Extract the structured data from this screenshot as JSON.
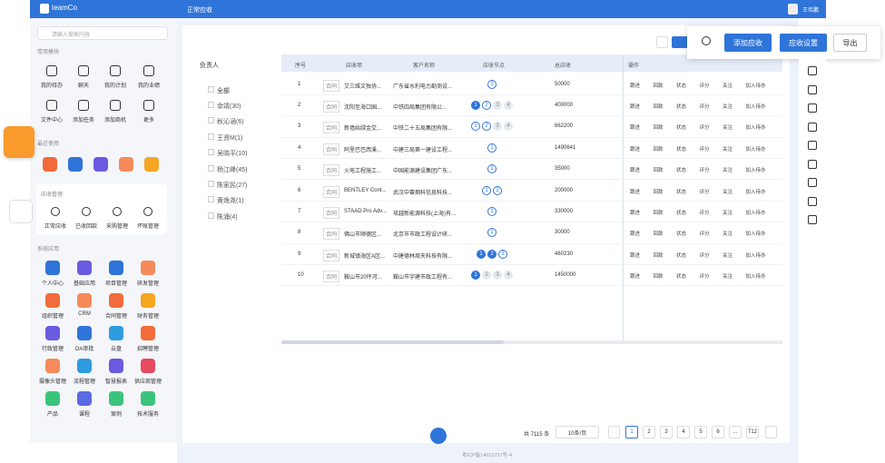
{
  "header": {
    "logo": "teamCo",
    "page_title": "正常应收",
    "user": "王伟鹏"
  },
  "sidebar": {
    "search_placeholder": "请输入搜索内容",
    "common_title": "常用模块",
    "common": [
      "我的待办",
      "聊天",
      "我的计划",
      "我的业绩",
      "文件中心",
      "添加任务",
      "添加商机",
      "更多"
    ],
    "recent_title": "最近使用",
    "receivable_title": "应收管理",
    "receivable": [
      "正常应收",
      "已收回款",
      "采购管理",
      "坏账管理"
    ],
    "apps_title": "系统应用",
    "apps": [
      "个人中心",
      "基础应用",
      "项目管理",
      "研发管理",
      "组织管理",
      "CRM",
      "合同管理",
      "财务管理",
      "行政管理",
      "OA审批",
      "云盘",
      "招聘管理",
      "摄像头管理",
      "流程管理",
      "智慧报表",
      "供应商管理",
      "产品",
      "课程",
      "案例",
      "技术服务"
    ]
  },
  "filter": {
    "title": "负责人",
    "all": "全部",
    "people": [
      "余靖(30)",
      "秋沁涵(6)",
      "王贤M(1)",
      "吴晓平(10)",
      "杨江峰(45)",
      "陈家民(27)",
      "黄逸尧(1)",
      "陈涌(4)"
    ]
  },
  "toolbar": {
    "add": "添加应收",
    "settings": "应收设置",
    "export": "导出"
  },
  "table": {
    "headers": [
      "序号",
      "应收项",
      "客户名称",
      "应收节点",
      "总应收",
      "操作"
    ],
    "actions": [
      "跟进",
      "回款",
      "状态",
      "评分",
      "关注",
      "加入待办"
    ],
    "rows": [
      {
        "index": "1",
        "tag": "合同",
        "item": "艾三维文独协...",
        "customer": "广东省水利电力勘测设...",
        "nodes": [
          {
            "label": "1",
            "state": "current"
          }
        ],
        "total": "50000"
      },
      {
        "index": "2",
        "tag": "合同",
        "item": "沈阳至海口国...",
        "customer": "中铁四局集团有限公...",
        "nodes": [
          {
            "label": "1",
            "state": "done"
          },
          {
            "label": "2",
            "state": "current"
          },
          {
            "label": "3",
            "state": "todo"
          },
          {
            "label": "4",
            "state": "todo"
          }
        ],
        "total": "400000"
      },
      {
        "index": "3",
        "tag": "合同",
        "item": "新墙始绿金交...",
        "customer": "中铁二十五局集团有限...",
        "nodes": [
          {
            "label": "1",
            "state": "current"
          },
          {
            "label": "2",
            "state": "current"
          },
          {
            "label": "3",
            "state": "todo"
          },
          {
            "label": "4",
            "state": "todo"
          }
        ],
        "total": "662200"
      },
      {
        "index": "4",
        "tag": "合同",
        "item": "阿里巴巴西溪...",
        "customer": "中建三局第一建设工程...",
        "nodes": [
          {
            "label": "1",
            "state": "current"
          }
        ],
        "total": "1490641"
      },
      {
        "index": "5",
        "tag": "合同",
        "item": "火电工程施工...",
        "customer": "中国能源建设集团广东...",
        "nodes": [
          {
            "label": "1",
            "state": "current"
          }
        ],
        "total": "35000"
      },
      {
        "index": "6",
        "tag": "合同",
        "item": "BENTLEY Cont...",
        "customer": "武汉中粟拥科信息科技...",
        "nodes": [
          {
            "label": "1",
            "state": "current"
          },
          {
            "label": "2",
            "state": "current"
          }
        ],
        "total": "200000"
      },
      {
        "index": "7",
        "tag": "合同",
        "item": "STAAD.Pro Adv...",
        "customer": "攻越新能源科技(上海)有...",
        "nodes": [
          {
            "label": "1",
            "state": "current"
          }
        ],
        "total": "330000"
      },
      {
        "index": "8",
        "tag": "合同",
        "item": "佛山市顺德区...",
        "customer": "北京市市政工程设计研...",
        "nodes": [
          {
            "label": "1",
            "state": "current"
          }
        ],
        "total": "30000"
      },
      {
        "index": "9",
        "tag": "合同",
        "item": "新城镇海区A区...",
        "customer": "中建德林周天科技有限...",
        "nodes": [
          {
            "label": "1",
            "state": "done"
          },
          {
            "label": "2",
            "state": "done"
          },
          {
            "label": "3",
            "state": "current"
          }
        ],
        "total": "460230"
      },
      {
        "index": "10",
        "tag": "合同",
        "item": "鞍山市20坪河...",
        "customer": "鞍山市宇建市政工程有...",
        "nodes": [
          {
            "label": "1",
            "state": "done"
          },
          {
            "label": "2",
            "state": "todo"
          },
          {
            "label": "3",
            "state": "todo"
          },
          {
            "label": "4",
            "state": "todo"
          }
        ],
        "total": "1450000"
      }
    ]
  },
  "pagination": {
    "total": "共 7115 条",
    "page_size": "10条/页",
    "pages": [
      "1",
      "2",
      "3",
      "4",
      "5",
      "6",
      "...",
      "712"
    ]
  },
  "footer": {
    "icp": "粤ICP备14012727号-4"
  }
}
